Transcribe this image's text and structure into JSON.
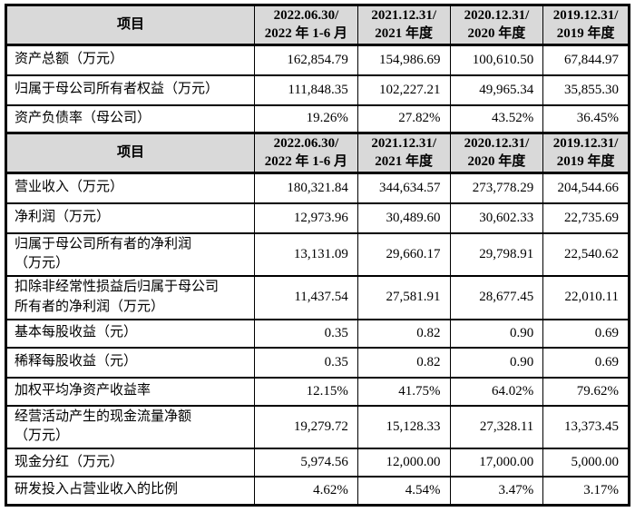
{
  "colors": {
    "header_bg": "#d9d9d9",
    "border": "#000000",
    "page_bg": "#ffffff",
    "text": "#000000"
  },
  "sections": [
    {
      "item_label": "项目",
      "columns": [
        {
          "l1": "2022.06.30/",
          "l2": "2022 年 1-6 月"
        },
        {
          "l1": "2021.12.31/",
          "l2": "2021 年度"
        },
        {
          "l1": "2020.12.31/",
          "l2": "2020 年度"
        },
        {
          "l1": "2019.12.31/",
          "l2": "2019 年度"
        }
      ],
      "rows": [
        {
          "label": "资产总额（万元）",
          "values": [
            "162,854.79",
            "154,986.69",
            "100,610.50",
            "67,844.97"
          ]
        },
        {
          "label": "归属于母公司所有者权益（万元）",
          "values": [
            "111,848.35",
            "102,227.21",
            "49,965.34",
            "35,855.30"
          ]
        },
        {
          "label": "资产负债率（母公司）",
          "values": [
            "19.26%",
            "27.82%",
            "43.52%",
            "36.45%"
          ]
        }
      ]
    },
    {
      "item_label": "项目",
      "columns": [
        {
          "l1": "2022.06.30/",
          "l2": "2022 年 1-6 月"
        },
        {
          "l1": "2021.12.31/",
          "l2": "2021 年度"
        },
        {
          "l1": "2020.12.31/",
          "l2": "2020 年度"
        },
        {
          "l1": "2019.12.31/",
          "l2": "2019 年度"
        }
      ],
      "rows": [
        {
          "label": "营业收入（万元）",
          "values": [
            "180,321.84",
            "344,634.57",
            "273,778.29",
            "204,544.66"
          ]
        },
        {
          "label": "净利润（万元）",
          "values": [
            "12,973.96",
            "30,489.60",
            "30,602.33",
            "22,735.69"
          ]
        },
        {
          "label": "归属于母公司所有者的净利润",
          "label2": "（万元）",
          "values": [
            "13,131.09",
            "29,660.17",
            "29,798.91",
            "22,540.62"
          ]
        },
        {
          "label": "扣除非经常性损益后归属于母公司",
          "label2": "所有者的净利润（万元）",
          "values": [
            "11,437.54",
            "27,581.91",
            "28,677.45",
            "22,010.11"
          ]
        },
        {
          "label": "基本每股收益（元）",
          "values": [
            "0.35",
            "0.82",
            "0.90",
            "0.69"
          ]
        },
        {
          "label": "稀释每股收益（元）",
          "values": [
            "0.35",
            "0.82",
            "0.90",
            "0.69"
          ]
        },
        {
          "label": "加权平均净资产收益率",
          "values": [
            "12.15%",
            "41.75%",
            "64.02%",
            "79.62%"
          ]
        },
        {
          "label": "经营活动产生的现金流量净额",
          "label2": "（万元）",
          "values": [
            "19,279.72",
            "15,128.33",
            "27,328.11",
            "13,373.45"
          ]
        },
        {
          "label": "现金分红（万元）",
          "values": [
            "5,974.56",
            "12,000.00",
            "17,000.00",
            "5,000.00"
          ]
        },
        {
          "label": "研发投入占营业收入的比例",
          "values": [
            "4.62%",
            "4.54%",
            "3.47%",
            "3.17%"
          ]
        }
      ]
    }
  ]
}
